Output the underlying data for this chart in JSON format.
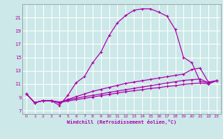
{
  "bg_color": "#cce8e8",
  "line_color": "#aa00aa",
  "grid_color": "#ffffff",
  "xlabel": "Windchill (Refroidissement éolien,°C)",
  "xlim": [
    -0.5,
    23.5
  ],
  "ylim": [
    6.5,
    23.0
  ],
  "xticks": [
    0,
    1,
    2,
    3,
    4,
    5,
    6,
    7,
    8,
    9,
    10,
    11,
    12,
    13,
    14,
    15,
    16,
    17,
    18,
    19,
    20,
    21,
    22,
    23
  ],
  "yticks": [
    7,
    9,
    11,
    13,
    15,
    17,
    19,
    21
  ],
  "line1_x": [
    0,
    1,
    2,
    3,
    4,
    5,
    6,
    7,
    8,
    9,
    10,
    11,
    12,
    13,
    14,
    15,
    16,
    17,
    18,
    19,
    20,
    21,
    22,
    23
  ],
  "line1_y": [
    9.5,
    8.2,
    8.5,
    8.5,
    7.8,
    9.3,
    11.2,
    12.1,
    14.2,
    15.8,
    18.3,
    20.2,
    21.3,
    22.1,
    22.3,
    22.3,
    21.8,
    21.2,
    19.2,
    15.0,
    14.2,
    11.4,
    11.2,
    11.5
  ],
  "line2_x": [
    0,
    1,
    2,
    3,
    4,
    5,
    6,
    7,
    8,
    9,
    10,
    11,
    12,
    13,
    14,
    15,
    16,
    17,
    18,
    19,
    20,
    21,
    22,
    23
  ],
  "line2_y": [
    9.5,
    8.2,
    8.5,
    8.5,
    8.2,
    8.7,
    9.1,
    9.5,
    9.9,
    10.2,
    10.5,
    10.8,
    11.1,
    11.3,
    11.5,
    11.7,
    11.9,
    12.1,
    12.3,
    12.5,
    13.2,
    13.4,
    11.3,
    11.5
  ],
  "line3_x": [
    0,
    1,
    2,
    3,
    4,
    5,
    6,
    7,
    8,
    9,
    10,
    11,
    12,
    13,
    14,
    15,
    16,
    17,
    18,
    19,
    20,
    21,
    22,
    23
  ],
  "line3_y": [
    9.5,
    8.2,
    8.5,
    8.5,
    8.3,
    8.6,
    8.85,
    9.1,
    9.3,
    9.5,
    9.75,
    9.95,
    10.15,
    10.35,
    10.55,
    10.75,
    10.95,
    11.15,
    11.35,
    11.55,
    11.65,
    11.75,
    11.2,
    11.5
  ],
  "line4_x": [
    0,
    1,
    2,
    3,
    4,
    5,
    6,
    7,
    8,
    9,
    10,
    11,
    12,
    13,
    14,
    15,
    16,
    17,
    18,
    19,
    20,
    21,
    22,
    23
  ],
  "line4_y": [
    9.5,
    8.2,
    8.5,
    8.5,
    8.2,
    8.45,
    8.65,
    8.85,
    9.05,
    9.25,
    9.45,
    9.65,
    9.85,
    10.0,
    10.15,
    10.35,
    10.45,
    10.65,
    10.75,
    10.95,
    11.05,
    11.15,
    11.0,
    11.5
  ]
}
